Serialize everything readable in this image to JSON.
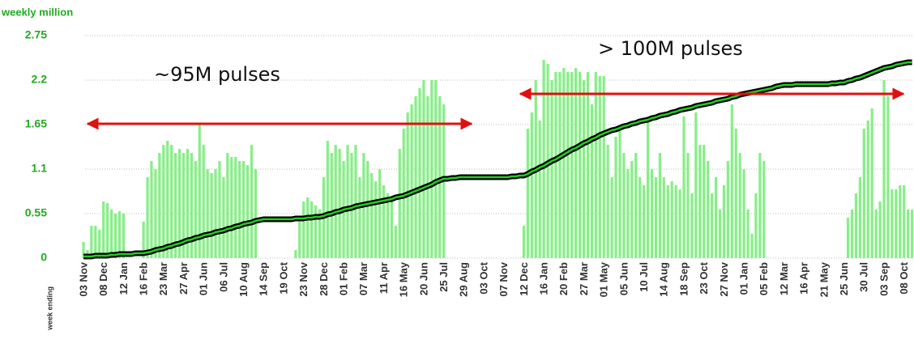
{
  "chart_data": {
    "type": "bar",
    "y_label": "weekly million",
    "x_label": "week ending",
    "annotations": [
      "~95M pulses",
      "> 100M pulses"
    ],
    "ylim": [
      0,
      2.75
    ],
    "yticks": [
      0,
      0.55,
      1.1,
      1.65,
      2.2,
      2.75
    ],
    "grid": true,
    "categories": [
      "03 Nov",
      null,
      null,
      null,
      null,
      "08 Dec",
      null,
      null,
      null,
      null,
      "12 Jan",
      null,
      null,
      null,
      null,
      "16 Feb",
      null,
      null,
      null,
      null,
      "23 Mar",
      null,
      null,
      null,
      null,
      "27 Apr",
      null,
      null,
      null,
      null,
      "01 Jun",
      null,
      null,
      null,
      null,
      "06 Jul",
      null,
      null,
      null,
      null,
      "10 Aug",
      null,
      null,
      null,
      null,
      "14 Sep",
      null,
      null,
      null,
      null,
      "19 Oct",
      null,
      null,
      null,
      null,
      "23 Nov",
      null,
      null,
      null,
      null,
      "28 Dec",
      null,
      null,
      null,
      null,
      "01 Feb",
      null,
      null,
      null,
      null,
      "07 Mar",
      null,
      null,
      null,
      null,
      "11 Apr",
      null,
      null,
      null,
      null,
      "16 May",
      null,
      null,
      null,
      null,
      "20 Jun",
      null,
      null,
      null,
      null,
      "25 Jul",
      null,
      null,
      null,
      null,
      "29 Aug",
      null,
      null,
      null,
      null,
      "03 Oct",
      null,
      null,
      null,
      null,
      "07 Nov",
      null,
      null,
      null,
      null,
      "12 Dec",
      null,
      null,
      null,
      null,
      "16 Jan",
      null,
      null,
      null,
      null,
      "20 Feb",
      null,
      null,
      null,
      null,
      "27 Mar",
      null,
      null,
      null,
      null,
      "01 May",
      null,
      null,
      null,
      null,
      "05 Jun",
      null,
      null,
      null,
      null,
      "10 Jul",
      null,
      null,
      null,
      null,
      "14 Aug",
      null,
      null,
      null,
      null,
      "18 Sep",
      null,
      null,
      null,
      null,
      "23 Oct",
      null,
      null,
      null,
      null,
      "27 Nov",
      null,
      null,
      null,
      null,
      "01 Jan",
      null,
      null,
      null,
      null,
      "05 Feb",
      null,
      null,
      null,
      null,
      "12 Mar",
      null,
      null,
      null,
      null,
      "16 Apr",
      null,
      null,
      null,
      null,
      "21 May",
      null,
      null,
      null,
      null,
      "25 Jun",
      null,
      null,
      null,
      null,
      "30 Jul",
      null,
      null,
      null,
      null,
      "03 Sep",
      null,
      null,
      null,
      null,
      "08 Oct",
      null,
      null
    ],
    "series": [
      {
        "type": "bar",
        "color": "#88ee88",
        "values": [
          0.2,
          0.1,
          0.4,
          0.4,
          0.35,
          0.7,
          0.68,
          0.6,
          0.55,
          0.58,
          0.55,
          0,
          0,
          0,
          0,
          0.45,
          1.0,
          1.2,
          1.1,
          1.3,
          1.4,
          1.45,
          1.4,
          1.3,
          1.35,
          1.3,
          1.35,
          1.3,
          1.2,
          1.65,
          1.4,
          1.1,
          1.05,
          1.1,
          1.2,
          1.0,
          1.3,
          1.25,
          1.25,
          1.2,
          1.2,
          1.15,
          1.4,
          1.1,
          0,
          0,
          0,
          0,
          0,
          0,
          0,
          0,
          0,
          0.1,
          0.5,
          0.7,
          0.75,
          0.7,
          0.65,
          0.6,
          1.0,
          1.45,
          1.3,
          1.4,
          1.35,
          1.2,
          1.4,
          1.3,
          1.4,
          1.0,
          1.3,
          1.2,
          1.05,
          0.95,
          1.1,
          0.9,
          0.8,
          0.75,
          0.4,
          1.35,
          1.6,
          1.8,
          1.9,
          2.0,
          2.1,
          2.2,
          2.0,
          2.2,
          2.2,
          2.0,
          1.9,
          0,
          0,
          0,
          0,
          0,
          0,
          0,
          0,
          0,
          0,
          0,
          0,
          0,
          0,
          0,
          0,
          0,
          0,
          0,
          0.4,
          1.6,
          1.8,
          2.2,
          1.7,
          2.45,
          2.4,
          2.2,
          2.3,
          2.3,
          2.35,
          2.3,
          2.3,
          2.35,
          2.3,
          2.2,
          2.3,
          1.9,
          2.3,
          2.25,
          2.25,
          1.4,
          1.0,
          1.5,
          1.6,
          1.3,
          1.1,
          1.2,
          1.3,
          1.0,
          0.9,
          1.7,
          1.1,
          1.0,
          1.3,
          1.0,
          0.9,
          0.95,
          0.9,
          0.85,
          1.75,
          1.3,
          0.8,
          1.8,
          1.4,
          1.4,
          1.2,
          0.8,
          1.0,
          0.6,
          0.9,
          1.2,
          1.9,
          1.6,
          1.3,
          1.1,
          0.6,
          0.3,
          0.8,
          1.3,
          1.2,
          0,
          0,
          0,
          0,
          0,
          0,
          0,
          0,
          0,
          0,
          0,
          0,
          0,
          0,
          0,
          0,
          0,
          0,
          0,
          0,
          0.5,
          0.6,
          0.8,
          1.0,
          1.6,
          1.7,
          1.85,
          0.6,
          0.7,
          2.2,
          2.0,
          0.85,
          0.85,
          0.9,
          0.9,
          0.6,
          0.6
        ]
      },
      {
        "type": "line",
        "color": "#22cc22",
        "values": [
          0.02,
          0.02,
          0.02,
          0.03,
          0.03,
          0.03,
          0.03,
          0.04,
          0.04,
          0.05,
          0.05,
          0.05,
          0.05,
          0.06,
          0.06,
          0.06,
          0.07,
          0.08,
          0.1,
          0.11,
          0.12,
          0.14,
          0.15,
          0.17,
          0.18,
          0.2,
          0.22,
          0.23,
          0.25,
          0.26,
          0.28,
          0.29,
          0.3,
          0.32,
          0.33,
          0.34,
          0.36,
          0.37,
          0.39,
          0.4,
          0.42,
          0.43,
          0.44,
          0.46,
          0.47,
          0.48,
          0.48,
          0.48,
          0.48,
          0.48,
          0.48,
          0.48,
          0.48,
          0.49,
          0.49,
          0.49,
          0.5,
          0.5,
          0.51,
          0.51,
          0.52,
          0.54,
          0.55,
          0.57,
          0.58,
          0.6,
          0.61,
          0.62,
          0.64,
          0.65,
          0.66,
          0.67,
          0.68,
          0.69,
          0.7,
          0.71,
          0.72,
          0.73,
          0.75,
          0.76,
          0.77,
          0.79,
          0.81,
          0.83,
          0.85,
          0.87,
          0.89,
          0.91,
          0.94,
          0.96,
          0.98,
          0.98,
          0.99,
          0.99,
          1.0,
          1.0,
          1.0,
          1.0,
          1.0,
          1.0,
          1.0,
          1.0,
          1.0,
          1.0,
          1.0,
          1.0,
          1.0,
          1.01,
          1.01,
          1.02,
          1.02,
          1.04,
          1.07,
          1.09,
          1.12,
          1.14,
          1.17,
          1.2,
          1.22,
          1.25,
          1.28,
          1.31,
          1.34,
          1.36,
          1.39,
          1.42,
          1.44,
          1.47,
          1.49,
          1.52,
          1.54,
          1.56,
          1.58,
          1.59,
          1.61,
          1.63,
          1.64,
          1.66,
          1.67,
          1.69,
          1.7,
          1.71,
          1.73,
          1.74,
          1.76,
          1.77,
          1.78,
          1.8,
          1.81,
          1.83,
          1.84,
          1.85,
          1.86,
          1.88,
          1.89,
          1.9,
          1.91,
          1.92,
          1.94,
          1.95,
          1.96,
          1.97,
          1.99,
          2.0,
          2.02,
          2.03,
          2.04,
          2.05,
          2.06,
          2.07,
          2.08,
          2.09,
          2.1,
          2.12,
          2.13,
          2.14,
          2.14,
          2.14,
          2.15,
          2.15,
          2.15,
          2.15,
          2.15,
          2.15,
          2.15,
          2.15,
          2.15,
          2.16,
          2.16,
          2.17,
          2.17,
          2.19,
          2.2,
          2.22,
          2.23,
          2.25,
          2.27,
          2.29,
          2.31,
          2.33,
          2.35,
          2.36,
          2.37,
          2.39,
          2.4,
          2.41,
          2.42,
          2.42
        ]
      }
    ]
  }
}
